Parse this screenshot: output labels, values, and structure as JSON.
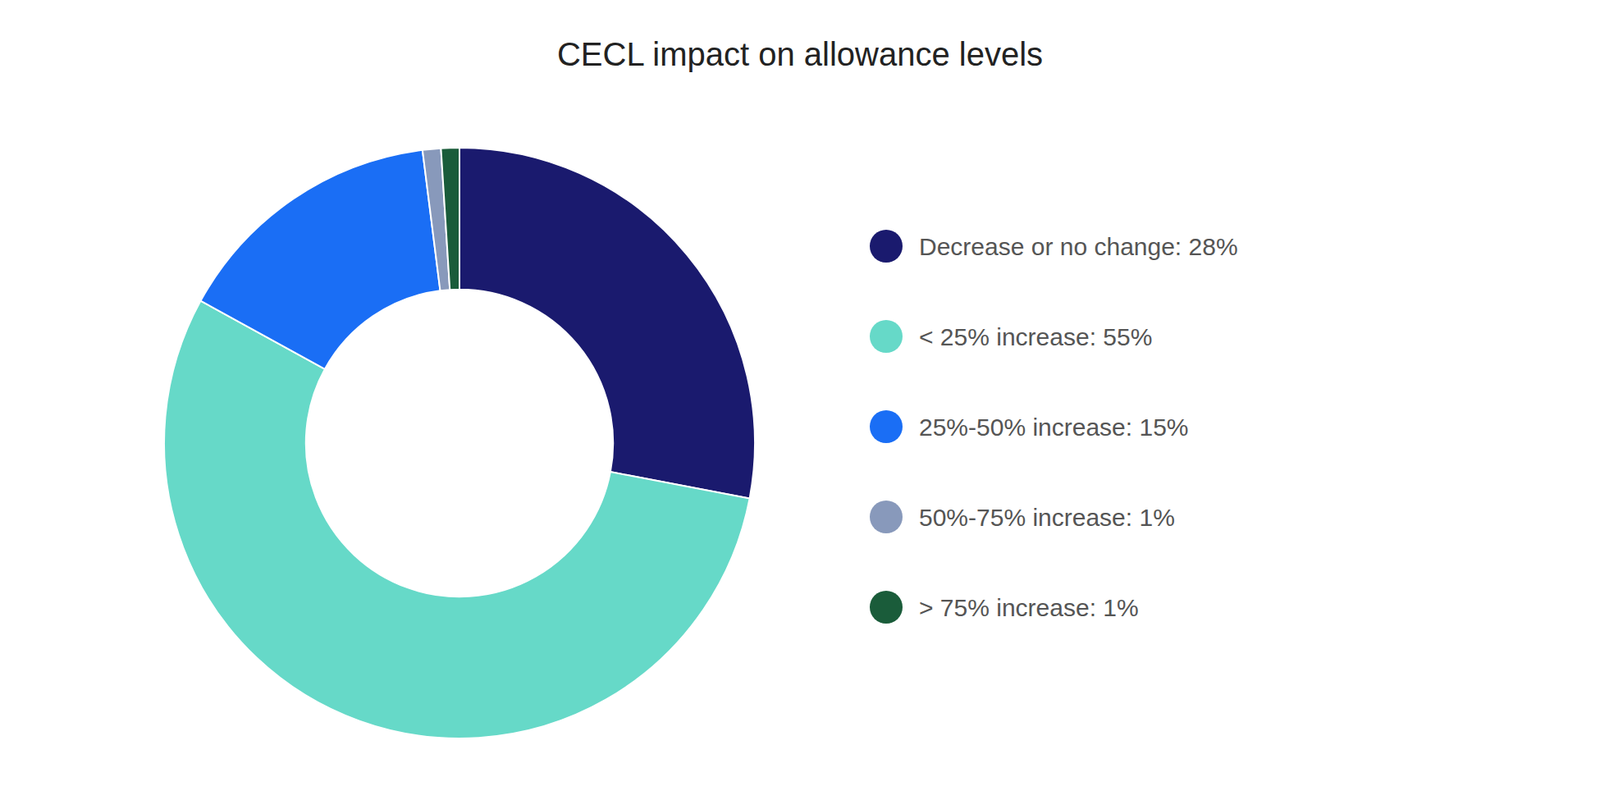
{
  "chart_data": {
    "type": "pie",
    "title": "CECL impact on allowance levels",
    "categories": [
      "Decrease or no change: 28%",
      "< 25% increase: 55%",
      "25%-50% increase: 15%",
      "50%-75% increase: 1%",
      "> 75% increase: 1%"
    ],
    "values": [
      28,
      55,
      15,
      1,
      1
    ],
    "colors": [
      "#1a1a6e",
      "#66d9c8",
      "#1a6ef5",
      "#8899bb",
      "#1a5c3a"
    ],
    "legend": "right"
  }
}
